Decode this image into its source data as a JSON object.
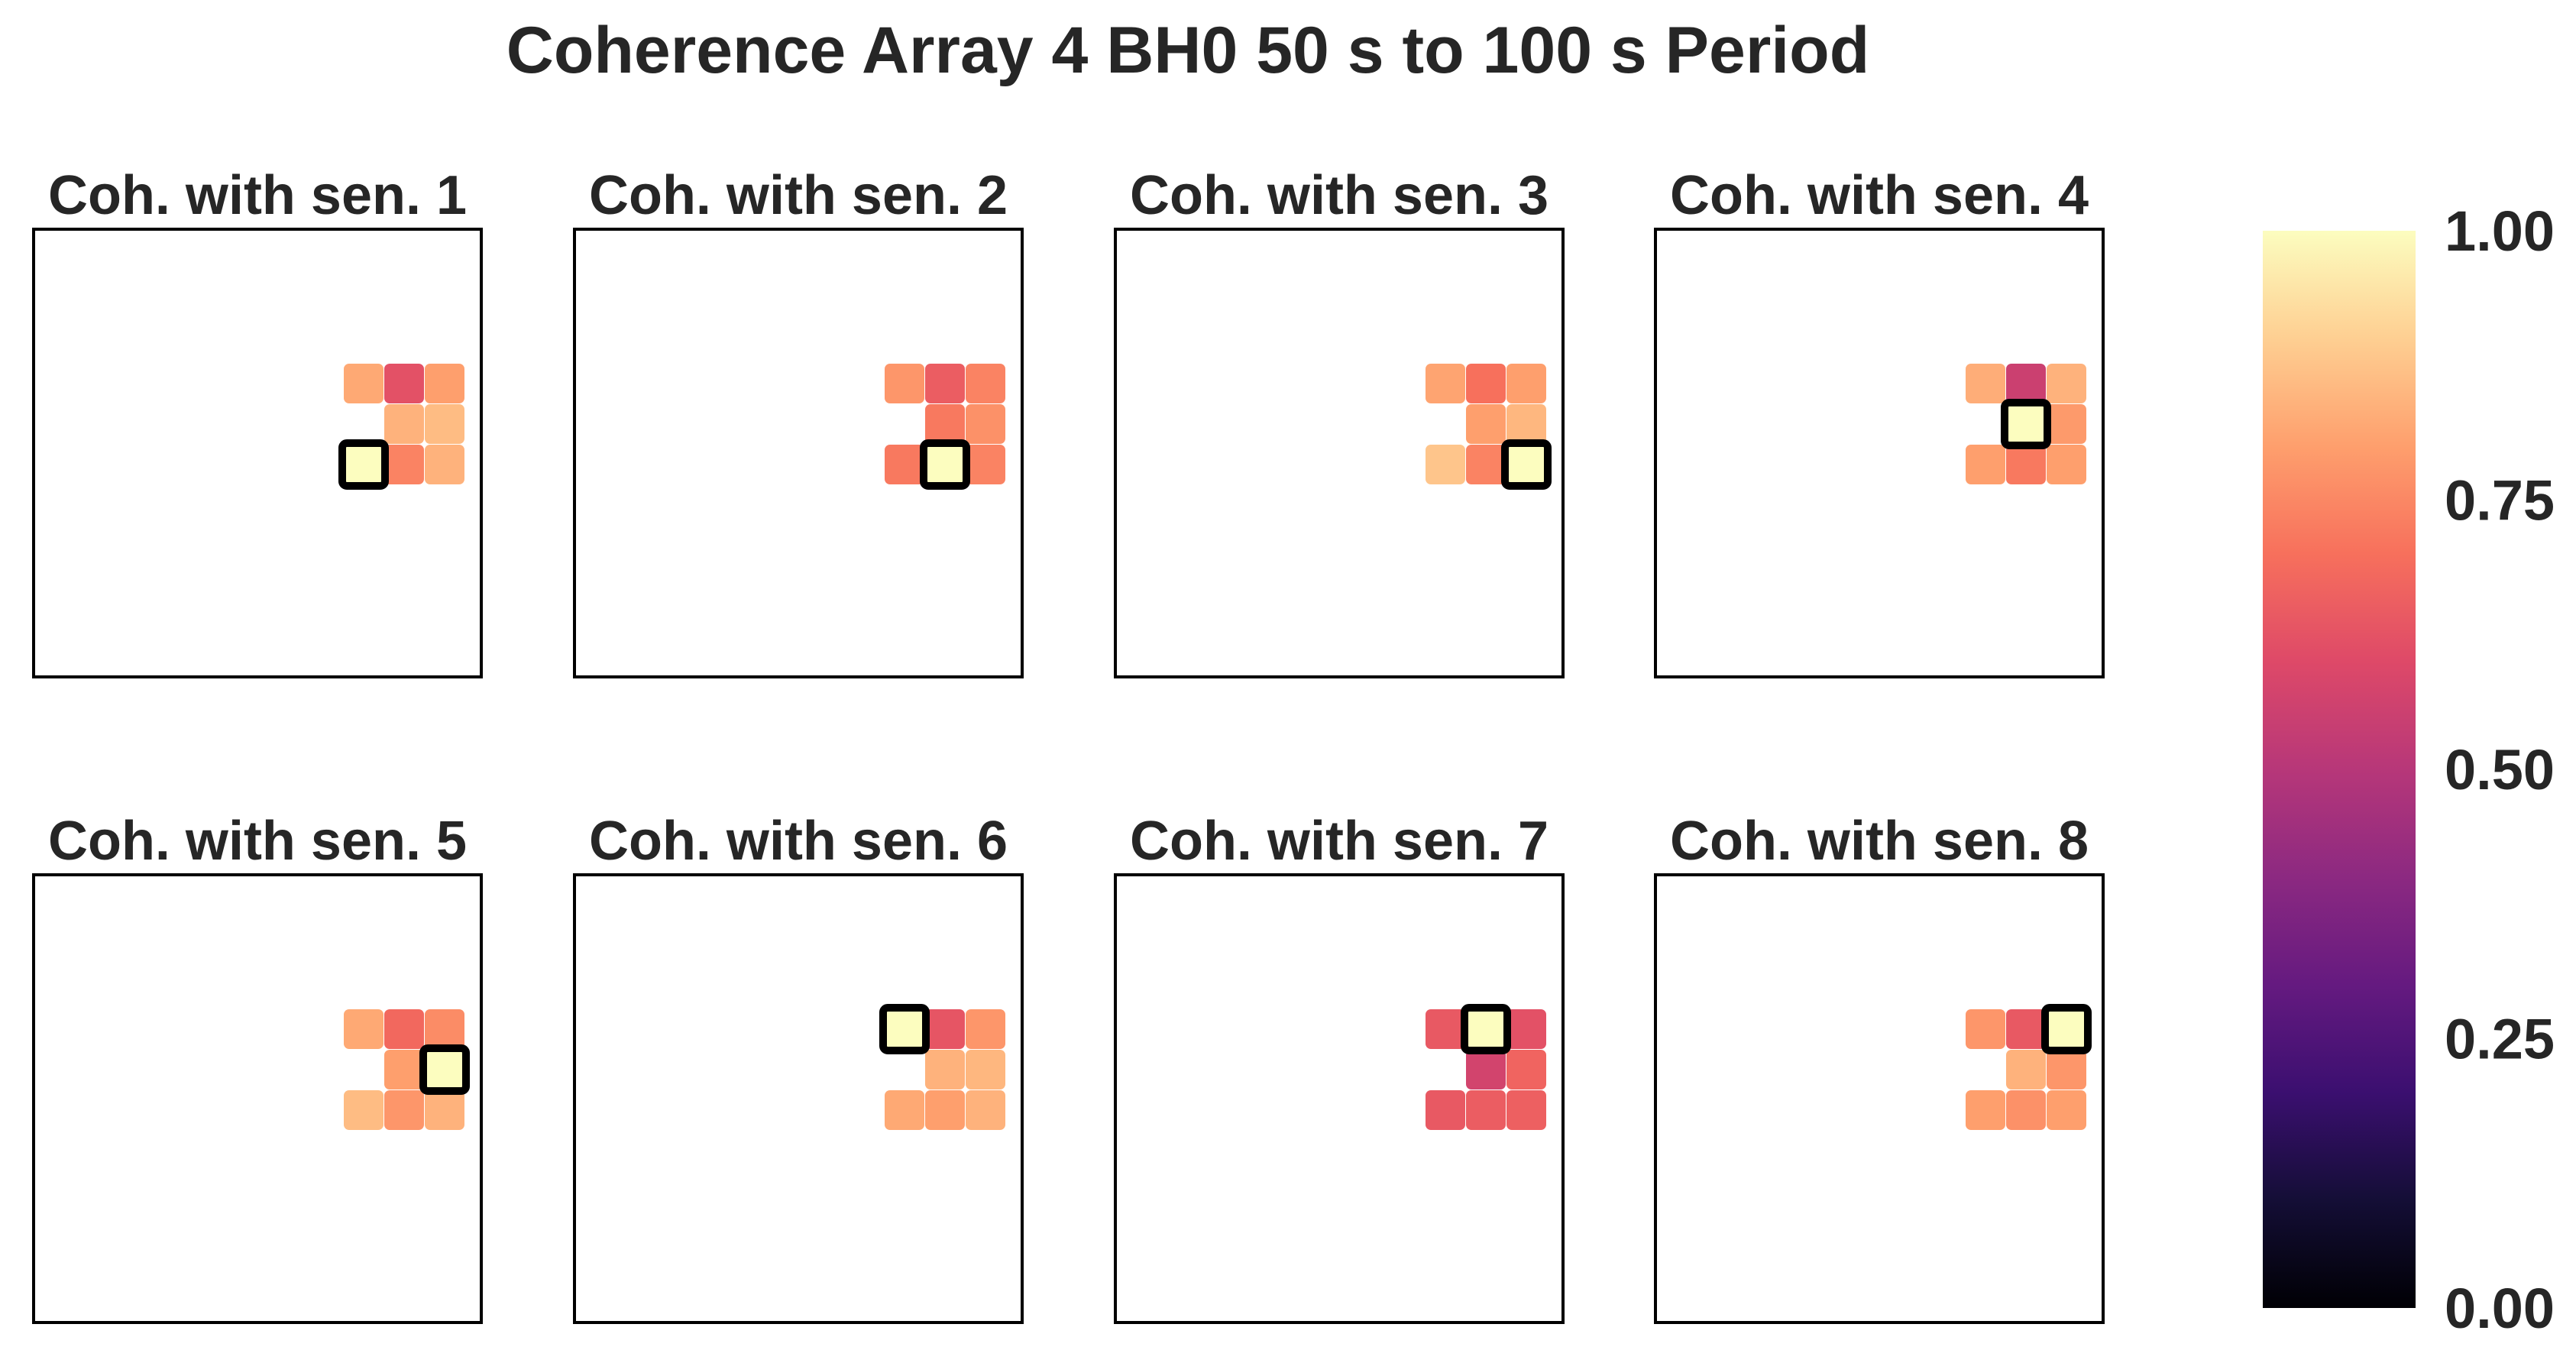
{
  "chart_data": {
    "type": "heatmap",
    "title": "Coherence Array 4 BH0 50 s to 100 s Period",
    "colormap": "magma",
    "vmin": 0.0,
    "vmax": 1.0,
    "colorbar_ticks": [
      "0.00",
      "0.25",
      "0.50",
      "0.75",
      "1.00"
    ],
    "grid_layout": "3 x 3 sensor grid, bottom-left cell empty",
    "panels": [
      {
        "title": "Coh. with sen. 1",
        "sensor": 1,
        "reference_cell": [
          2,
          0
        ],
        "values": [
          [
            0.82,
            0.62,
            0.8
          ],
          [
            null,
            0.84,
            0.86
          ],
          [
            1.0,
            0.74,
            0.84
          ]
        ]
      },
      {
        "title": "Coh. with sen. 2",
        "sensor": 2,
        "reference_cell": [
          2,
          1
        ],
        "values": [
          [
            0.78,
            0.65,
            0.74
          ],
          [
            null,
            0.72,
            0.77
          ],
          [
            0.72,
            1.0,
            0.74
          ]
        ]
      },
      {
        "title": "Coh. with sen. 3",
        "sensor": 3,
        "reference_cell": [
          2,
          2
        ],
        "values": [
          [
            0.81,
            0.7,
            0.8
          ],
          [
            null,
            0.8,
            0.85
          ],
          [
            0.88,
            0.74,
            1.0
          ]
        ]
      },
      {
        "title": "Coh. with sen. 4",
        "sensor": 4,
        "reference_cell": [
          1,
          1
        ],
        "values": [
          [
            0.83,
            0.55,
            0.84
          ],
          [
            null,
            1.0,
            0.79
          ],
          [
            0.8,
            0.72,
            0.8
          ]
        ]
      },
      {
        "title": "Coh. with sen. 5",
        "sensor": 5,
        "reference_cell": [
          1,
          2
        ],
        "values": [
          [
            0.82,
            0.68,
            0.76
          ],
          [
            null,
            0.8,
            1.0
          ],
          [
            0.86,
            0.78,
            0.84
          ]
        ]
      },
      {
        "title": "Coh. with sen. 6",
        "sensor": 6,
        "reference_cell": [
          0,
          0
        ],
        "values": [
          [
            1.0,
            0.63,
            0.78
          ],
          [
            null,
            0.84,
            0.85
          ],
          [
            0.82,
            0.8,
            0.84
          ]
        ]
      },
      {
        "title": "Coh. with sen. 7",
        "sensor": 7,
        "reference_cell": [
          0,
          1
        ],
        "values": [
          [
            0.64,
            1.0,
            0.62
          ],
          [
            null,
            0.57,
            0.67
          ],
          [
            0.64,
            0.65,
            0.66
          ]
        ]
      },
      {
        "title": "Coh. with sen. 8",
        "sensor": 8,
        "reference_cell": [
          0,
          2
        ],
        "values": [
          [
            0.78,
            0.64,
            1.0
          ],
          [
            null,
            0.84,
            0.78
          ],
          [
            0.8,
            0.77,
            0.8
          ]
        ]
      }
    ]
  }
}
